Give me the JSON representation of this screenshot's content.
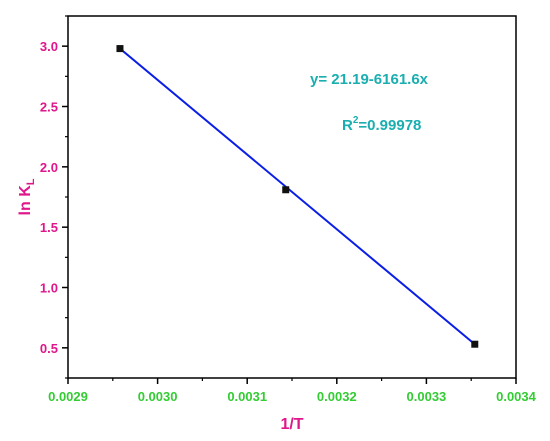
{
  "chart_data": {
    "type": "scatter",
    "title": "",
    "xlabel": "1/T",
    "ylabel_main": "ln K",
    "ylabel_sub": "L",
    "xlim": [
      0.0029,
      0.0034
    ],
    "ylim": [
      0.25,
      3.25
    ],
    "x_ticks": [
      "0.0029",
      "0.0030",
      "0.0031",
      "0.0032",
      "0.0033",
      "0.0034"
    ],
    "y_ticks": [
      "0.5",
      "1.0",
      "1.5",
      "2.0",
      "2.5",
      "3.0"
    ],
    "grid": false,
    "series": [
      {
        "points": [
          {
            "x": 0.002958,
            "y": 2.98
          },
          {
            "x": 0.003143,
            "y": 1.81
          },
          {
            "x": 0.003354,
            "y": 0.53
          }
        ]
      }
    ],
    "fit_line": {
      "x": [
        0.002958,
        0.003354
      ],
      "y": [
        2.98,
        0.53
      ]
    },
    "annotations": {
      "equation": "y= 21.19-6161.6x",
      "r2_prefix": "R",
      "r2_sup": "2",
      "r2_value": "=0.99978"
    },
    "colors": {
      "axis_title": "#e0168b",
      "tick_label_x": "#33cc33",
      "tick_label_y": "#e0168b",
      "annotation": "#1aaeb0",
      "line": "#0b1ee6",
      "marker": "#111111",
      "frame": "#000000"
    }
  }
}
